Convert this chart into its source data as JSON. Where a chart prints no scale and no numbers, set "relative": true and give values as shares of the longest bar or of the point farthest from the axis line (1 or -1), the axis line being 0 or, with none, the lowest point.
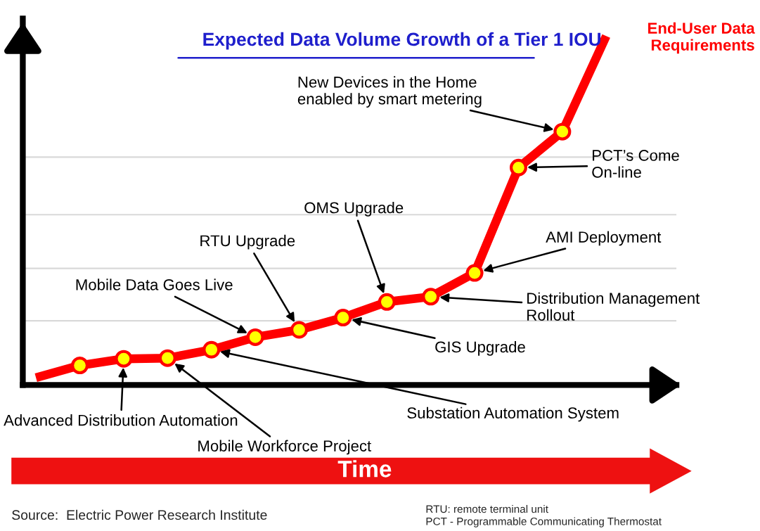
{
  "chart_data": {
    "type": "line",
    "title": "Expected Data Volume Growth of a Tier 1 IOU",
    "xlabel": "Time",
    "relative": true,
    "categories": [
      null,
      null,
      null,
      null,
      null,
      null,
      null,
      null,
      null,
      null,
      null,
      null,
      null,
      null
    ],
    "series": [
      {
        "color": "#ff0000",
        "marker": "circle",
        "values": [
          0.021,
          0.056,
          0.075,
          0.077,
          0.101,
          0.137,
          0.158,
          0.193,
          0.238,
          0.253,
          0.321,
          0.623,
          0.726,
          1.0
        ]
      }
    ],
    "ref_lines": [
      {
        "axis": "y",
        "value": 0.184,
        "color": "#d9d9d9"
      },
      {
        "axis": "y",
        "value": 0.334,
        "color": "#d9d9d9"
      },
      {
        "axis": "y",
        "value": 0.488,
        "color": "#d9d9d9"
      },
      {
        "axis": "y",
        "value": 0.653,
        "color": "#d9d9d9"
      }
    ],
    "annotations": [
      "Advanced Distribution Automation",
      "Mobile Workforce Project",
      "Substation Automation System",
      "Mobile Data Goes Live",
      "RTU Upgrade",
      "GIS Upgrade",
      "OMS Upgrade",
      "Distribution Management\nRollout",
      "AMI Deployment",
      "PCT’s Come\nOn-line",
      "New Devices in the Home\nenabled by smart metering",
      "End-User Data\nRequirements",
      "Source:  Electric Power Research Institute",
      "RTU: remote terminal unit\nPCT - Programmable Communicating Thermostat"
    ]
  }
}
